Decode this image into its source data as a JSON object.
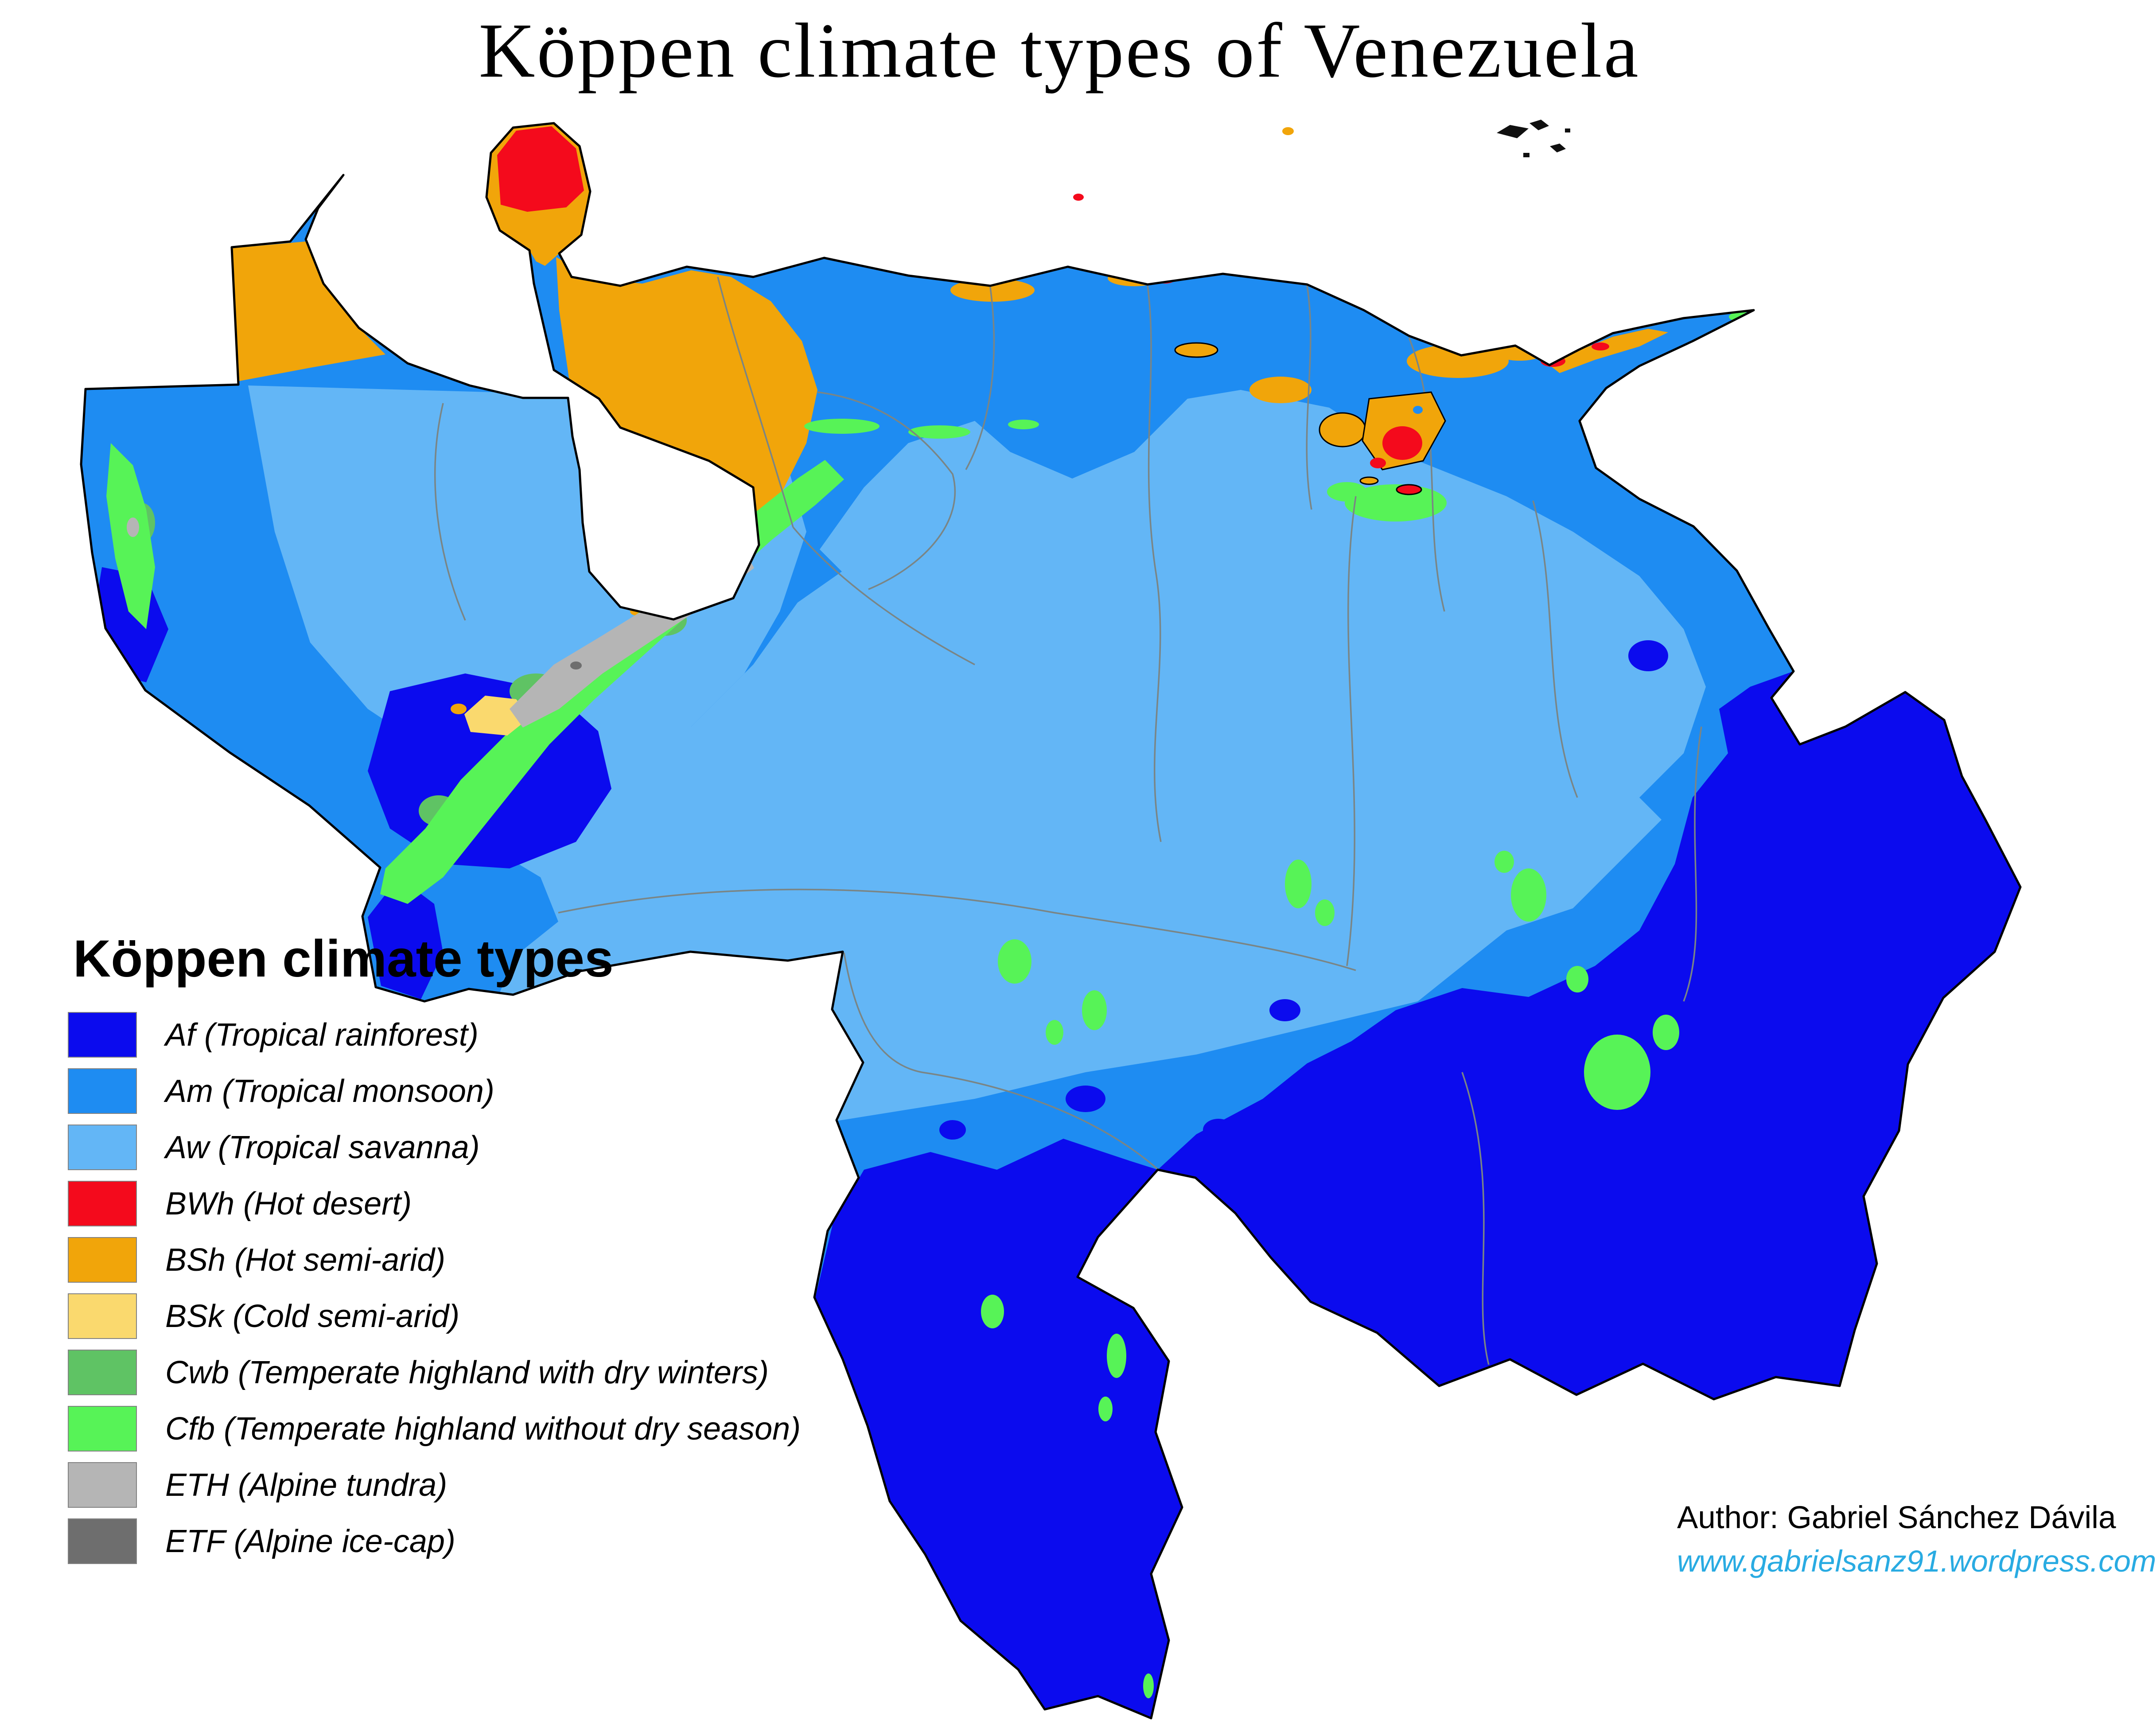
{
  "title": "Köppen climate types of Venezuela",
  "legend": {
    "title": "Köppen climate types",
    "items": [
      {
        "code": "af",
        "label": "Af (Tropical rainforest)",
        "color": "#0b0bee"
      },
      {
        "code": "am",
        "label": "Am (Tropical monsoon)",
        "color": "#1e8cf2"
      },
      {
        "code": "aw",
        "label": "Aw (Tropical savanna)",
        "color": "#63b6f6"
      },
      {
        "code": "bwh",
        "label": "BWh (Hot desert)",
        "color": "#f40a1c"
      },
      {
        "code": "bsh",
        "label": "BSh (Hot semi-arid)",
        "color": "#f1a50a"
      },
      {
        "code": "bsk",
        "label": "BSk (Cold semi-arid)",
        "color": "#fad96e"
      },
      {
        "code": "cwb",
        "label": "Cwb (Temperate highland with dry winters)",
        "color": "#5fc364"
      },
      {
        "code": "cfb",
        "label": "Cfb (Temperate highland without dry season)",
        "color": "#57f357"
      },
      {
        "code": "eth",
        "label": "ETH (Alpine tundra)",
        "color": "#b5b5b5"
      },
      {
        "code": "etf",
        "label": "ETF (Alpine ice-cap)",
        "color": "#6e6e6e"
      }
    ]
  },
  "credit": {
    "author": "Author: Gabriel Sánchez Dávila",
    "website": "www.gabrielsanz91.wordpress.com",
    "link_color": "#29abe2"
  },
  "map": {
    "country": "Venezuela",
    "palette": {
      "af": "#0b0bee",
      "am": "#1e8cf2",
      "aw": "#63b6f6",
      "bwh": "#f40a1c",
      "bsh": "#f1a50a",
      "bsk": "#fad96e",
      "cwb": "#5fc364",
      "cfb": "#57f357",
      "eth": "#b5b5b5",
      "etf": "#6e6e6e",
      "coastline": "#000000",
      "state_border": "#7a8585",
      "water": "#ffffff"
    }
  }
}
